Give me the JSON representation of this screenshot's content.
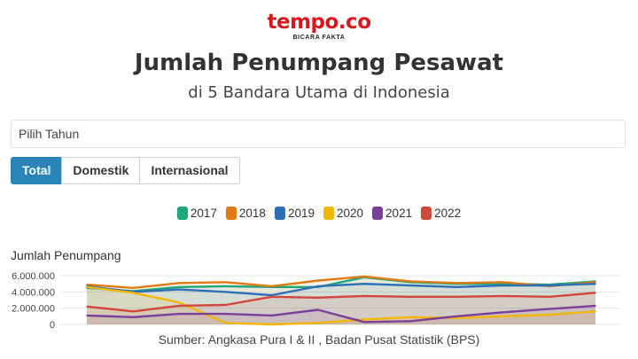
{
  "header": {
    "logo": "tempo.co",
    "tagline": "BICARA FAKTA"
  },
  "title": "Jumlah Penumpang Pesawat",
  "subtitle": "di 5 Bandara Utama di Indonesia",
  "year_select": {
    "label": "Pilih Tahun"
  },
  "tabs": [
    {
      "label": "Total",
      "active": true
    },
    {
      "label": "Domestik",
      "active": false
    },
    {
      "label": "Internasional",
      "active": false
    }
  ],
  "source": "Sumber: Angkasa Pura I & II , Badan Pusat Statistik (BPS)",
  "chart_data": {
    "type": "area",
    "ylabel": "Jumlah Penumpang",
    "yticks": [
      "6.000.000",
      "4.000.000",
      "2.000.000",
      "0"
    ],
    "ylim": [
      0,
      6000000
    ],
    "x": [
      1,
      2,
      3,
      4,
      5,
      6,
      7,
      8,
      9,
      10,
      11,
      12
    ],
    "grid": true,
    "legend_position": "top-center",
    "series": [
      {
        "name": "2017",
        "color": "#1fa77a",
        "values": [
          4500000,
          4100000,
          4600000,
          4700000,
          4600000,
          4600000,
          5800000,
          5200000,
          5000000,
          5000000,
          4900000,
          5300000
        ]
      },
      {
        "name": "2018",
        "color": "#e07b14",
        "values": [
          4900000,
          4500000,
          5100000,
          5200000,
          4700000,
          5400000,
          5900000,
          5300000,
          5100000,
          5200000,
          4700000,
          5200000
        ]
      },
      {
        "name": "2019",
        "color": "#2e6fb8",
        "values": [
          4700000,
          4000000,
          4300000,
          4000000,
          3600000,
          4700000,
          5000000,
          4800000,
          4600000,
          4800000,
          4800000,
          5000000
        ]
      },
      {
        "name": "2020",
        "color": "#f2b705",
        "values": [
          4600000,
          3900000,
          2700000,
          200000,
          0,
          200000,
          600000,
          900000,
          800000,
          1000000,
          1200000,
          1600000
        ]
      },
      {
        "name": "2021",
        "color": "#7b3f99",
        "values": [
          1100000,
          900000,
          1300000,
          1300000,
          1100000,
          1800000,
          300000,
          400000,
          1000000,
          1500000,
          1900000,
          2300000
        ]
      },
      {
        "name": "2022",
        "color": "#d2473b",
        "values": [
          2200000,
          1600000,
          2300000,
          2400000,
          3400000,
          3300000,
          3500000,
          3400000,
          3400000,
          3500000,
          3400000,
          3900000
        ]
      }
    ]
  }
}
